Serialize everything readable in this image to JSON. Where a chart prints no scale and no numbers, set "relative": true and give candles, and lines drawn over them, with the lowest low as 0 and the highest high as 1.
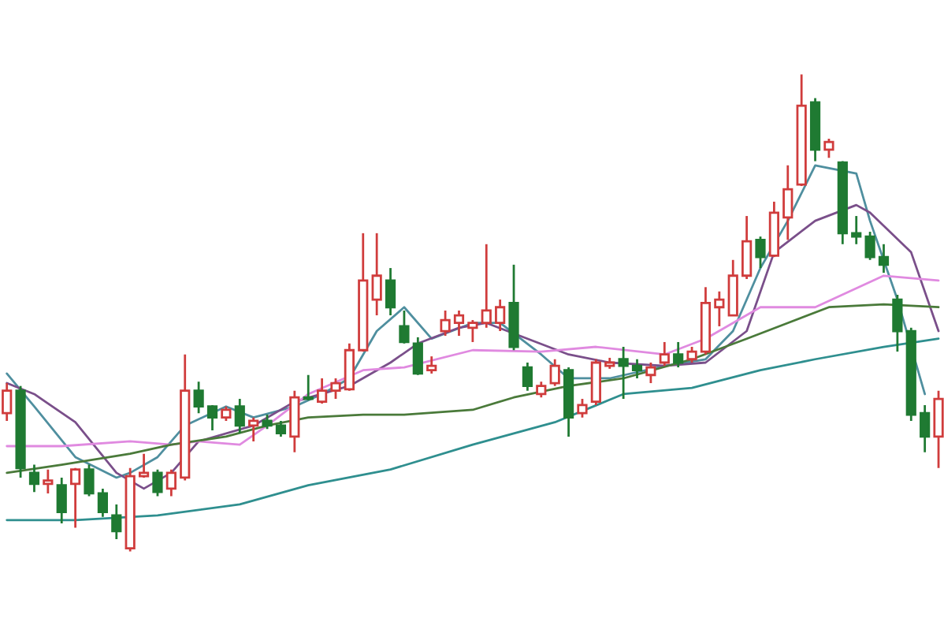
{
  "chart_data": {
    "type": "candlestick",
    "relative": true,
    "categories": [
      null,
      null,
      null,
      null,
      null,
      null,
      null,
      null,
      null,
      null,
      null,
      null,
      null,
      null,
      null,
      null,
      null,
      null,
      null,
      null,
      null,
      null,
      null,
      null,
      null,
      null,
      null,
      null,
      null,
      null,
      null,
      null,
      null,
      null,
      null,
      null,
      null,
      null,
      null,
      null,
      null,
      null,
      null,
      null,
      null,
      null,
      null,
      null,
      null,
      null,
      null,
      null,
      null,
      null,
      null,
      null,
      null,
      null,
      null,
      null,
      null,
      null,
      null,
      null,
      null,
      null,
      null,
      null,
      null
    ],
    "ohlc": [
      [
        0.29,
        0.353,
        0.274,
        0.337
      ],
      [
        0.337,
        0.347,
        0.155,
        0.175
      ],
      [
        0.165,
        0.182,
        0.125,
        0.142
      ],
      [
        0.142,
        0.172,
        0.122,
        0.149
      ],
      [
        0.139,
        0.155,
        0.059,
        0.083
      ],
      [
        0.142,
        0.175,
        0.05,
        0.172
      ],
      [
        0.172,
        0.182,
        0.116,
        0.122
      ],
      [
        0.122,
        0.132,
        0.073,
        0.083
      ],
      [
        0.076,
        0.099,
        0.026,
        0.043
      ],
      [
        0.007,
        0.175,
        0,
        0.158
      ],
      [
        0.158,
        0.205,
        0.155,
        0.165
      ],
      [
        0.165,
        0.172,
        0.116,
        0.125
      ],
      [
        0.132,
        0.172,
        0.116,
        0.165
      ],
      [
        0.155,
        0.413,
        0.149,
        0.337
      ],
      [
        0.337,
        0.356,
        0.29,
        0.304
      ],
      [
        0.304,
        0.307,
        0.254,
        0.281
      ],
      [
        0.281,
        0.304,
        0.274,
        0.297
      ],
      [
        0.304,
        0.32,
        0.248,
        0.264
      ],
      [
        0.264,
        0.281,
        0.231,
        0.274
      ],
      [
        0.274,
        0.287,
        0.257,
        0.264
      ],
      [
        0.264,
        0.274,
        0.241,
        0.248
      ],
      [
        0.241,
        0.337,
        0.208,
        0.323
      ],
      [
        0.323,
        0.37,
        0.317,
        0.32
      ],
      [
        0.314,
        0.363,
        0.31,
        0.337
      ],
      [
        0.337,
        0.363,
        0.32,
        0.353
      ],
      [
        0.34,
        0.436,
        0.337,
        0.422
      ],
      [
        0.422,
        0.667,
        0.419,
        0.568
      ],
      [
        0.528,
        0.667,
        0.495,
        0.578
      ],
      [
        0.568,
        0.594,
        0.495,
        0.512
      ],
      [
        0.472,
        0.505,
        0.436,
        0.439
      ],
      [
        0.436,
        0.449,
        0.37,
        0.373
      ],
      [
        0.38,
        0.409,
        0.373,
        0.389
      ],
      [
        0.462,
        0.505,
        0.452,
        0.485
      ],
      [
        0.479,
        0.505,
        0.452,
        0.495
      ],
      [
        0.469,
        0.485,
        0.439,
        0.479
      ],
      [
        0.479,
        0.644,
        0.469,
        0.505
      ],
      [
        0.479,
        0.528,
        0.462,
        0.512
      ],
      [
        0.521,
        0.601,
        0.422,
        0.429
      ],
      [
        0.386,
        0.396,
        0.337,
        0.347
      ],
      [
        0.33,
        0.356,
        0.323,
        0.347
      ],
      [
        0.353,
        0.403,
        0.347,
        0.389
      ],
      [
        0.38,
        0.386,
        0.241,
        0.281
      ],
      [
        0.29,
        0.32,
        0.281,
        0.307
      ],
      [
        0.314,
        0.403,
        0.307,
        0.396
      ],
      [
        0.389,
        0.406,
        0.383,
        0.396
      ],
      [
        0.403,
        0.429,
        0.32,
        0.389
      ],
      [
        0.389,
        0.403,
        0.363,
        0.38
      ],
      [
        0.37,
        0.396,
        0.353,
        0.386
      ],
      [
        0.396,
        0.439,
        0.389,
        0.413
      ],
      [
        0.413,
        0.439,
        0.386,
        0.396
      ],
      [
        0.403,
        0.429,
        0.396,
        0.419
      ],
      [
        0.419,
        0.554,
        0.413,
        0.521
      ],
      [
        0.512,
        0.545,
        0.472,
        0.528
      ],
      [
        0.495,
        0.611,
        0.495,
        0.578
      ],
      [
        0.578,
        0.703,
        0.571,
        0.65
      ],
      [
        0.653,
        0.66,
        0.594,
        0.617
      ],
      [
        0.62,
        0.733,
        0.617,
        0.71
      ],
      [
        0.7,
        0.809,
        0.653,
        0.759
      ],
      [
        0.769,
        1.0,
        0.766,
        0.934
      ],
      [
        0.941,
        0.95,
        0.818,
        0.842
      ],
      [
        0.842,
        0.865,
        0.825,
        0.858
      ],
      [
        0.815,
        0.818,
        0.644,
        0.667
      ],
      [
        0.667,
        0.703,
        0.644,
        0.66
      ],
      [
        0.66,
        0.67,
        0.611,
        0.617
      ],
      [
        0.617,
        0.644,
        0.584,
        0.601
      ],
      [
        0.528,
        0.538,
        0.419,
        0.462
      ],
      [
        0.462,
        0.469,
        0.274,
        0.287
      ],
      [
        0.29,
        0.307,
        0.208,
        0.241
      ],
      [
        0.241,
        0.337,
        0.175,
        0.32
      ]
    ],
    "series": [
      {
        "type": "line",
        "color": "#4f8f9f",
        "values": [
          0.373,
          null,
          0.304,
          null,
          null,
          0.198,
          null,
          null,
          0.155,
          0.165,
          null,
          0.198,
          null,
          0.264,
          null,
          null,
          0.304,
          null,
          0.281,
          null,
          null,
          0.304,
          null,
          0.33,
          null,
          0.363,
          null,
          0.462,
          null,
          0.512,
          null,
          0.446,
          null,
          null,
          0.479,
          null,
          0.479,
          null,
          null,
          0.413,
          null,
          0.363,
          null,
          null,
          0.363,
          null,
          null,
          null,
          0.389,
          null,
          null,
          0.403,
          null,
          0.462,
          null,
          0.594,
          null,
          0.693,
          null,
          0.809,
          null,
          null,
          0.792,
          0.693,
          null,
          0.528,
          null,
          0.33,
          null
        ]
      },
      {
        "type": "line",
        "color": "#7a4f8a",
        "values": [
          0.353,
          null,
          0.33,
          null,
          null,
          0.271,
          null,
          null,
          0.165,
          null,
          0.132,
          null,
          0.165,
          null,
          0.231,
          null,
          null,
          null,
          0.264,
          null,
          null,
          0.314,
          null,
          null,
          null,
          0.347,
          null,
          null,
          0.396,
          null,
          0.436,
          null,
          null,
          0.469,
          null,
          0.479,
          null,
          null,
          0.446,
          null,
          null,
          0.413,
          null,
          null,
          0.396,
          null,
          null,
          null,
          0.389,
          null,
          null,
          0.396,
          null,
          null,
          0.462,
          null,
          0.627,
          null,
          null,
          0.693,
          null,
          null,
          0.726,
          0.71,
          null,
          null,
          0.627,
          null,
          0.462
        ]
      },
      {
        "type": "line",
        "color": "#e08ae0",
        "values": [
          0.221,
          null,
          null,
          null,
          0.221,
          null,
          null,
          null,
          null,
          0.231,
          null,
          null,
          0.224,
          null,
          0.231,
          null,
          null,
          0.224,
          null,
          0.264,
          null,
          null,
          0.33,
          null,
          null,
          null,
          0.38,
          null,
          null,
          0.386,
          null,
          null,
          null,
          null,
          0.422,
          null,
          null,
          null,
          null,
          0.419,
          null,
          null,
          null,
          0.429,
          null,
          null,
          null,
          null,
          0.413,
          null,
          null,
          0.446,
          null,
          null,
          null,
          0.512,
          null,
          null,
          null,
          0.512,
          null,
          null,
          null,
          null,
          0.578,
          null,
          null,
          null,
          0.568
        ]
      },
      {
        "type": "line",
        "color": "#4a7a3a",
        "values": [
          0.165,
          null,
          null,
          null,
          0.182,
          null,
          null,
          null,
          null,
          0.205,
          null,
          null,
          0.224,
          null,
          null,
          null,
          0.241,
          null,
          null,
          0.264,
          null,
          null,
          0.281,
          null,
          null,
          null,
          0.287,
          null,
          null,
          0.287,
          null,
          null,
          null,
          null,
          0.297,
          null,
          null,
          0.323,
          null,
          null,
          null,
          0.347,
          null,
          null,
          null,
          0.363,
          null,
          null,
          null,
          null,
          0.403,
          null,
          null,
          null,
          0.446,
          null,
          null,
          0.479,
          null,
          null,
          0.512,
          null,
          null,
          null,
          0.518,
          null,
          null,
          null,
          0.512
        ]
      },
      {
        "type": "line",
        "color": "#2f8f8f",
        "values": [
          0.066,
          null,
          null,
          null,
          null,
          0.066,
          null,
          null,
          null,
          null,
          null,
          0.076,
          null,
          null,
          null,
          null,
          null,
          0.099,
          null,
          null,
          null,
          null,
          0.139,
          null,
          null,
          null,
          null,
          null,
          0.172,
          null,
          null,
          null,
          null,
          null,
          0.224,
          null,
          null,
          null,
          null,
          null,
          0.271,
          null,
          null,
          null,
          null,
          0.33,
          null,
          null,
          null,
          null,
          0.343,
          null,
          null,
          null,
          null,
          0.38,
          null,
          null,
          null,
          0.403,
          null,
          null,
          null,
          null,
          0.429,
          null,
          null,
          null,
          0.446
        ]
      }
    ]
  }
}
